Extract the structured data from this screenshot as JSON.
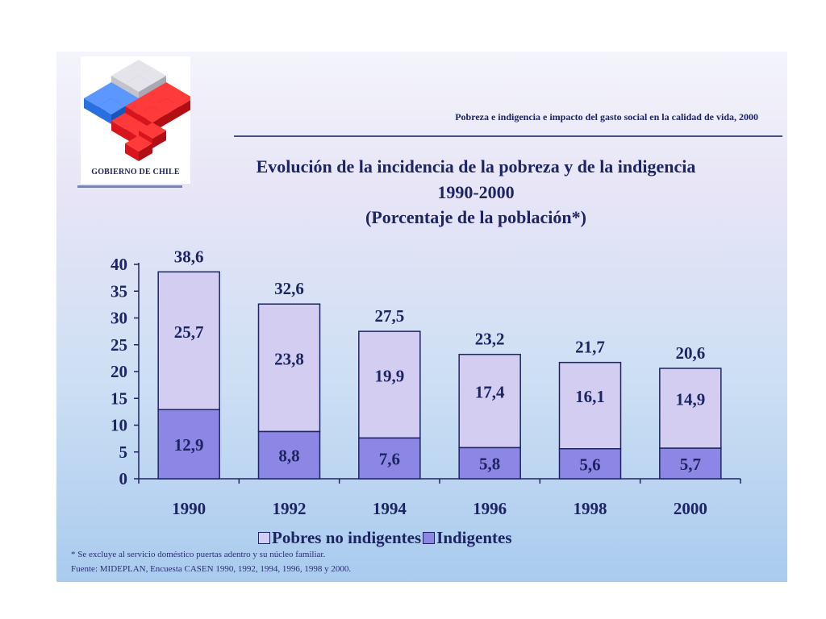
{
  "logo": {
    "text": "GOBIERNO DE CHILE"
  },
  "header": {
    "text": "Pobreza e indigencia e impacto del gasto social en la calidad de vida, 2000"
  },
  "colors": {
    "non_indigent": "#d2cdf1",
    "indigent": "#8c86e4",
    "text": "#1d2463",
    "logo_red": "#e01b24",
    "logo_blue": "#2a6fe0",
    "logo_grey": "#c9c9cf"
  },
  "chart_data": {
    "type": "bar",
    "stacked": true,
    "title": "Evolución de la incidencia de la pobreza y de la indigencia",
    "subtitle": "1990-2000",
    "unit_line": "(Porcentaje de la población*)",
    "categories": [
      "1990",
      "1992",
      "1994",
      "1996",
      "1998",
      "2000"
    ],
    "series": [
      {
        "name": "Indigentes",
        "values": [
          12.9,
          8.8,
          7.6,
          5.8,
          5.6,
          5.7
        ],
        "labels": [
          "12,9",
          "8,8",
          "7,6",
          "5,8",
          "5,6",
          "5,7"
        ]
      },
      {
        "name": "Pobres no indigentes",
        "values": [
          25.7,
          23.8,
          19.9,
          17.4,
          16.1,
          14.9
        ],
        "labels": [
          "25,7",
          "23,8",
          "19,9",
          "17,4",
          "16,1",
          "14,9"
        ]
      }
    ],
    "totals": [
      38.6,
      32.6,
      27.5,
      23.2,
      21.7,
      20.6
    ],
    "total_labels": [
      "38,6",
      "32,6",
      "27,5",
      "23,2",
      "21,7",
      "20,6"
    ],
    "ylim": [
      0,
      40
    ],
    "yticks": [
      0,
      5,
      10,
      15,
      20,
      25,
      30,
      35,
      40
    ],
    "xlabel": "",
    "ylabel": "",
    "grid": false,
    "legend": {
      "position": "bottom",
      "items": [
        "Pobres no indigentes",
        "Indigentes"
      ]
    }
  },
  "footnote": "* Se excluye al servicio doméstico puertas adentro y su núcleo familiar.",
  "source": "Fuente: MIDEPLAN, Encuesta CASEN 1990, 1992, 1994, 1996, 1998 y 2000."
}
